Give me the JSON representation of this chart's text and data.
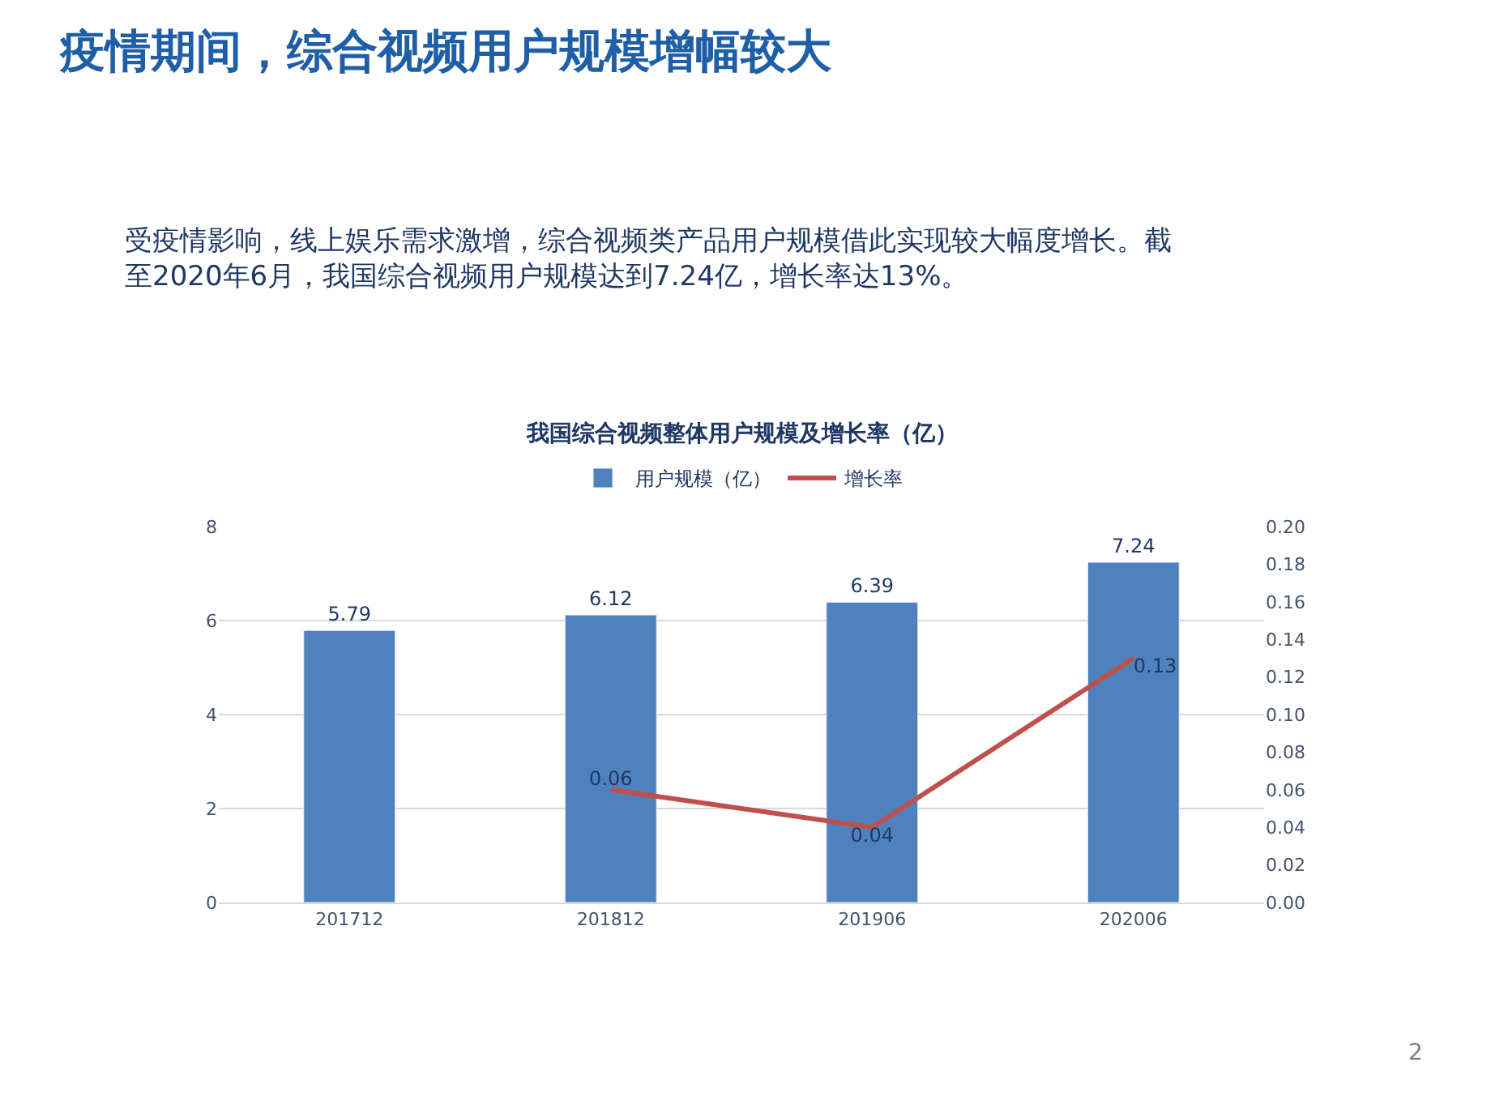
{
  "chart_data": {
    "type": "bar",
    "title": "疫情期间，综合视频用户规模增幅较大",
    "subtitle": "受疫情影响，线上娱乐需求激增，综合视频类产品用户规模借此实现较大幅度增长。截至2020年6月，我国综合视频用户规模达到7.24亿，增长率达13%。",
    "annotations": [
      "我国综合视频整体用户规模及增长率（亿）",
      "2"
    ],
    "categories": [
      "201712",
      "201812",
      "201906",
      "202006"
    ],
    "series": [
      {
        "name": "用户规模（亿）",
        "color": "#4f81bd",
        "values": [
          5.79,
          6.12,
          6.39,
          7.24
        ]
      },
      {
        "name": "增长率",
        "type": "line",
        "axis": "y2",
        "color": "#c0504d",
        "values": [
          null,
          0.06,
          0.04,
          0.13
        ]
      }
    ],
    "ylim": [
      0,
      8
    ],
    "yticks": [
      0,
      2,
      4,
      6,
      8
    ],
    "y2lim": [
      0,
      0.2
    ],
    "y2ticks": [
      {
        "value": 0,
        "label": "0.00"
      },
      {
        "value": 0.02,
        "label": "0.02"
      },
      {
        "value": 0.04,
        "label": "0.04"
      },
      {
        "value": 0.06,
        "label": "0.06"
      },
      {
        "value": 0.08,
        "label": "0.08"
      },
      {
        "value": 0.1,
        "label": "0.10"
      },
      {
        "value": 0.12,
        "label": "0.12"
      },
      {
        "value": 0.14,
        "label": "0.14"
      },
      {
        "value": 0.16,
        "label": "0.16"
      },
      {
        "value": 0.18,
        "label": "0.18"
      },
      {
        "value": 0.2,
        "label": "0.20"
      }
    ],
    "data_labels": true,
    "grid": "y",
    "legend": "top",
    "marker": "none"
  }
}
